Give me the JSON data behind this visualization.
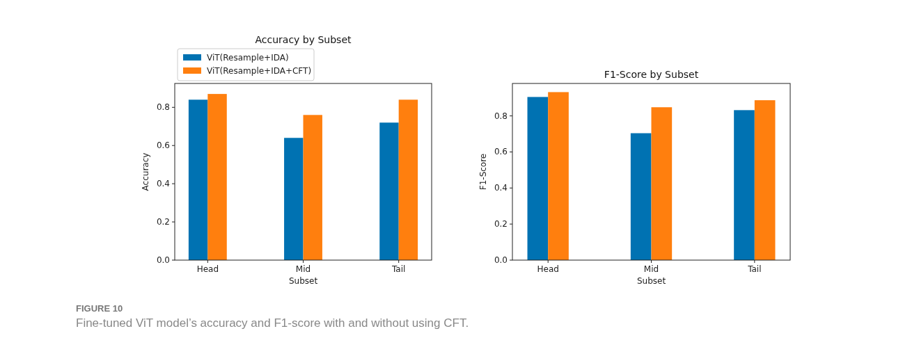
{
  "chart_data": [
    {
      "type": "bar",
      "title": "Accuracy by Subset",
      "xlabel": "Subset",
      "ylabel": "Accuracy",
      "categories": [
        "Head",
        "Mid",
        "Tail"
      ],
      "series": [
        {
          "name": "ViT(Resample+IDA)",
          "color": "#0072b2",
          "values": [
            0.84,
            0.64,
            0.72
          ]
        },
        {
          "name": "ViT(Resample+IDA+CFT)",
          "color": "#ff7f0e",
          "values": [
            0.87,
            0.76,
            0.84
          ]
        }
      ],
      "ylim": [
        0,
        0.925
      ],
      "yticks": [
        {
          "value": 0,
          "label": "0.0"
        },
        {
          "value": 0.2,
          "label": "0.2"
        },
        {
          "value": 0.4,
          "label": "0.4"
        },
        {
          "value": 0.6,
          "label": "0.6"
        },
        {
          "value": 0.8,
          "label": "0.8"
        }
      ],
      "legend": "top left",
      "annotations": [
        "FIGURE 10",
        "Fine-tuned ViT model’s accuracy and F1-score with and without using CFT."
      ]
    },
    {
      "type": "bar",
      "title": "F1-Score by Subset",
      "xlabel": "Subset",
      "ylabel": "F1-Score",
      "categories": [
        "Head",
        "Mid",
        "Tail"
      ],
      "series": [
        {
          "color": "#0072b2",
          "values": [
            0.905,
            0.704,
            0.832
          ]
        },
        {
          "color": "#ff7f0e",
          "values": [
            0.932,
            0.848,
            0.887
          ]
        }
      ],
      "ylim": [
        0,
        0.98
      ],
      "yticks": [
        {
          "value": 0,
          "label": "0.0"
        },
        {
          "value": 0.2,
          "label": "0.2"
        },
        {
          "value": 0.4,
          "label": "0.4"
        },
        {
          "value": 0.6,
          "label": "0.6"
        },
        {
          "value": 0.8,
          "label": "0.8"
        }
      ]
    }
  ]
}
